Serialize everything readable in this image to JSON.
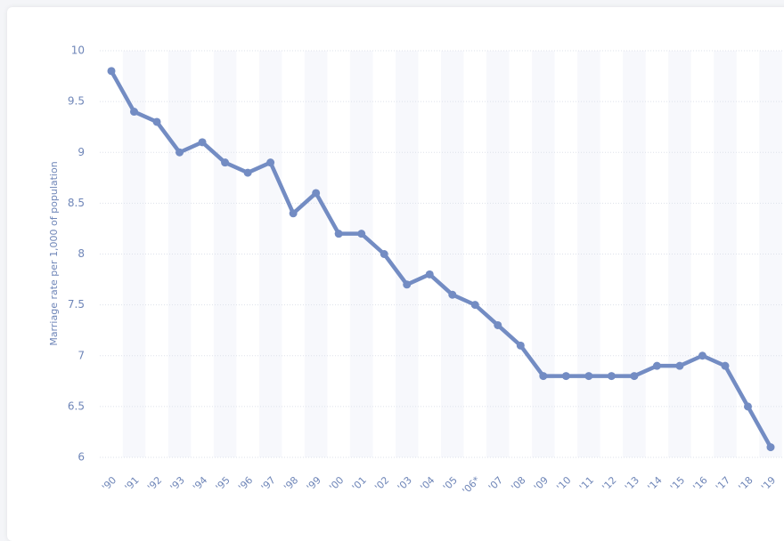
{
  "chart_data": {
    "type": "line",
    "y_label": "Marriage rate per 1,000 of population",
    "categories": [
      "'90",
      "'91",
      "'92",
      "'93",
      "'94",
      "'95",
      "'96",
      "'97",
      "'98",
      "'99",
      "'00",
      "'01",
      "'02",
      "'03",
      "'04",
      "'05",
      "'06*",
      "'07",
      "'08",
      "'09",
      "'10",
      "'11",
      "'12",
      "'13",
      "'14",
      "'15",
      "'16",
      "'17",
      "'18",
      "'19"
    ],
    "series": [
      {
        "color": "#738cc3",
        "values": [
          9.8,
          9.4,
          9.3,
          9.0,
          9.1,
          8.9,
          8.8,
          8.9,
          8.4,
          8.6,
          8.2,
          8.2,
          8.0,
          7.7,
          7.8,
          7.6,
          7.5,
          7.3,
          7.1,
          6.8,
          6.8,
          6.8,
          6.8,
          6.8,
          6.9,
          6.9,
          7.0,
          6.9,
          6.5,
          6.1
        ]
      }
    ],
    "ylim": [
      6,
      10
    ],
    "yticks": [
      6,
      6.5,
      7,
      7.5,
      8,
      8.5,
      9,
      9.5,
      10
    ],
    "grid": true
  }
}
